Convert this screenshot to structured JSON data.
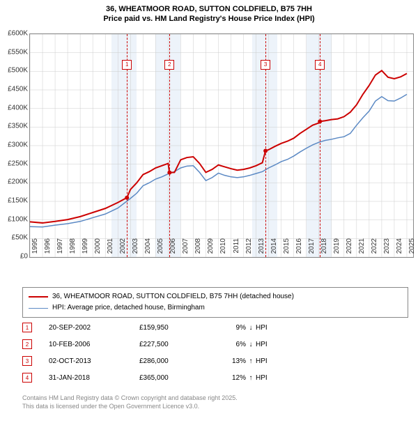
{
  "title_line1": "36, WHEATMOOR ROAD, SUTTON COLDFIELD, B75 7HH",
  "title_line2": "Price paid vs. HM Land Registry's House Price Index (HPI)",
  "chart": {
    "type": "line",
    "x_min": 1995,
    "x_max": 2025.5,
    "y_min": 0,
    "y_max": 600000,
    "y_ticks": [
      0,
      50000,
      100000,
      150000,
      200000,
      250000,
      300000,
      350000,
      400000,
      450000,
      500000,
      550000,
      600000
    ],
    "y_tick_labels": [
      "£0",
      "£50K",
      "£100K",
      "£150K",
      "£200K",
      "£250K",
      "£300K",
      "£350K",
      "£400K",
      "£450K",
      "£500K",
      "£550K",
      "£600K"
    ],
    "x_ticks": [
      1995,
      1996,
      1997,
      1998,
      1999,
      2000,
      2001,
      2002,
      2003,
      2004,
      2005,
      2006,
      2007,
      2008,
      2009,
      2010,
      2011,
      2012,
      2013,
      2014,
      2015,
      2016,
      2017,
      2018,
      2019,
      2020,
      2021,
      2022,
      2023,
      2024,
      2025
    ],
    "grid_color": "#cccccc",
    "background_color": "#ffffff",
    "shade_bands": [
      {
        "start": 2001.5,
        "end": 2003.5
      },
      {
        "start": 2005.0,
        "end": 2007.0
      },
      {
        "start": 2012.7,
        "end": 2014.7
      },
      {
        "start": 2017.0,
        "end": 2019.0
      }
    ],
    "shade_color": "rgba(173,200,230,0.22)",
    "events": [
      {
        "n": "1",
        "x": 2002.72,
        "y_label": 0.885
      },
      {
        "n": "2",
        "x": 2006.11,
        "y_label": 0.885
      },
      {
        "n": "3",
        "x": 2013.75,
        "y_label": 0.885
      },
      {
        "n": "4",
        "x": 2018.08,
        "y_label": 0.885
      }
    ],
    "event_line_color": "#cc0000",
    "series": [
      {
        "name": "price_paid",
        "color": "#cc0000",
        "width": 2,
        "data": [
          [
            1995,
            95000
          ],
          [
            1996,
            92000
          ],
          [
            1997,
            96000
          ],
          [
            1998,
            101000
          ],
          [
            1999,
            109000
          ],
          [
            2000,
            120000
          ],
          [
            2001,
            131000
          ],
          [
            2002,
            147000
          ],
          [
            2002.72,
            159950
          ],
          [
            2003,
            182000
          ],
          [
            2003.5,
            200000
          ],
          [
            2004,
            222000
          ],
          [
            2004.5,
            230000
          ],
          [
            2005,
            240000
          ],
          [
            2005.5,
            246000
          ],
          [
            2006,
            252000
          ],
          [
            2006.11,
            227500
          ],
          [
            2006.5,
            228000
          ],
          [
            2007,
            262000
          ],
          [
            2007.5,
            268000
          ],
          [
            2008,
            270000
          ],
          [
            2008.5,
            252000
          ],
          [
            2009,
            228000
          ],
          [
            2009.5,
            236000
          ],
          [
            2010,
            248000
          ],
          [
            2010.5,
            243000
          ],
          [
            2011,
            238000
          ],
          [
            2011.5,
            234000
          ],
          [
            2012,
            236000
          ],
          [
            2012.5,
            240000
          ],
          [
            2013,
            246000
          ],
          [
            2013.5,
            254000
          ],
          [
            2013.75,
            286000
          ],
          [
            2014,
            289000
          ],
          [
            2014.5,
            298000
          ],
          [
            2015,
            306000
          ],
          [
            2015.5,
            312000
          ],
          [
            2016,
            320000
          ],
          [
            2016.5,
            333000
          ],
          [
            2017,
            344000
          ],
          [
            2017.5,
            355000
          ],
          [
            2018,
            361000
          ],
          [
            2018.08,
            365000
          ],
          [
            2018.5,
            367000
          ],
          [
            2019,
            370000
          ],
          [
            2019.5,
            372000
          ],
          [
            2020,
            378000
          ],
          [
            2020.5,
            390000
          ],
          [
            2021,
            410000
          ],
          [
            2021.5,
            438000
          ],
          [
            2022,
            462000
          ],
          [
            2022.5,
            490000
          ],
          [
            2023,
            502000
          ],
          [
            2023.5,
            484000
          ],
          [
            2024,
            480000
          ],
          [
            2024.5,
            485000
          ],
          [
            2025,
            494000
          ]
        ]
      },
      {
        "name": "hpi",
        "color": "#5b89c4",
        "width": 1.5,
        "data": [
          [
            1995,
            82000
          ],
          [
            1996,
            81000
          ],
          [
            1997,
            86000
          ],
          [
            1998,
            90000
          ],
          [
            1999,
            96000
          ],
          [
            2000,
            106000
          ],
          [
            2001,
            116000
          ],
          [
            2002,
            132000
          ],
          [
            2003,
            158000
          ],
          [
            2003.5,
            172000
          ],
          [
            2004,
            192000
          ],
          [
            2004.5,
            200000
          ],
          [
            2005,
            210000
          ],
          [
            2005.5,
            216000
          ],
          [
            2006,
            224000
          ],
          [
            2006.5,
            230000
          ],
          [
            2007,
            240000
          ],
          [
            2007.5,
            245000
          ],
          [
            2008,
            246000
          ],
          [
            2008.5,
            228000
          ],
          [
            2009,
            206000
          ],
          [
            2009.5,
            214000
          ],
          [
            2010,
            226000
          ],
          [
            2010.5,
            220000
          ],
          [
            2011,
            216000
          ],
          [
            2011.5,
            214000
          ],
          [
            2012,
            216000
          ],
          [
            2012.5,
            220000
          ],
          [
            2013,
            225000
          ],
          [
            2013.5,
            230000
          ],
          [
            2014,
            240000
          ],
          [
            2014.5,
            248000
          ],
          [
            2015,
            257000
          ],
          [
            2015.5,
            263000
          ],
          [
            2016,
            272000
          ],
          [
            2016.5,
            283000
          ],
          [
            2017,
            293000
          ],
          [
            2017.5,
            302000
          ],
          [
            2018,
            309000
          ],
          [
            2018.5,
            314000
          ],
          [
            2019,
            317000
          ],
          [
            2019.5,
            321000
          ],
          [
            2020,
            324000
          ],
          [
            2020.5,
            333000
          ],
          [
            2021,
            355000
          ],
          [
            2021.5,
            375000
          ],
          [
            2022,
            393000
          ],
          [
            2022.5,
            420000
          ],
          [
            2023,
            432000
          ],
          [
            2023.5,
            421000
          ],
          [
            2024,
            420000
          ],
          [
            2024.5,
            428000
          ],
          [
            2025,
            438000
          ]
        ]
      }
    ]
  },
  "legend": {
    "series1": {
      "color": "#cc0000",
      "width": 2,
      "label": "36, WHEATMOOR ROAD, SUTTON COLDFIELD, B75 7HH (detached house)"
    },
    "series2": {
      "color": "#5b89c4",
      "width": 1.5,
      "label": "HPI: Average price, detached house, Birmingham"
    }
  },
  "table": {
    "rows": [
      {
        "n": "1",
        "date": "20-SEP-2002",
        "price": "£159,950",
        "pct": "9%",
        "dir": "↓",
        "hpi": "HPI",
        "color": "#cc0000"
      },
      {
        "n": "2",
        "date": "10-FEB-2006",
        "price": "£227,500",
        "pct": "6%",
        "dir": "↓",
        "hpi": "HPI",
        "color": "#cc0000"
      },
      {
        "n": "3",
        "date": "02-OCT-2013",
        "price": "£286,000",
        "pct": "13%",
        "dir": "↑",
        "hpi": "HPI",
        "color": "#cc0000"
      },
      {
        "n": "4",
        "date": "31-JAN-2018",
        "price": "£365,000",
        "pct": "12%",
        "dir": "↑",
        "hpi": "HPI",
        "color": "#cc0000"
      }
    ]
  },
  "footer": {
    "line1": "Contains HM Land Registry data © Crown copyright and database right 2025.",
    "line2": "This data is licensed under the Open Government Licence v3.0."
  }
}
